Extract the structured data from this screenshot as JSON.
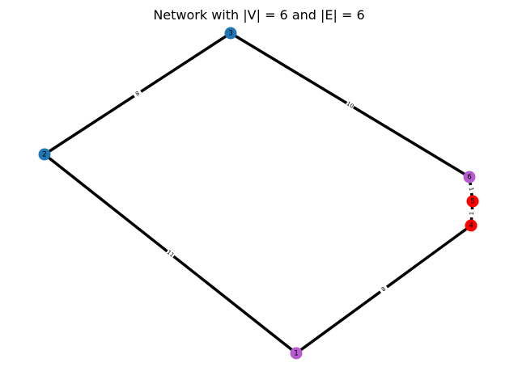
{
  "title": "Network with |V| = 6 and |E| = 6",
  "colors": {
    "background": "#ffffff",
    "edge": "#000000",
    "node_blue": "#1f77b4",
    "node_purple": "#b85bd2",
    "node_red": "#ff0000"
  },
  "nodes": [
    {
      "id": "1",
      "label": "1",
      "color": "#b85bd2"
    },
    {
      "id": "2",
      "label": "2",
      "color": "#1f77b4"
    },
    {
      "id": "3",
      "label": "3",
      "color": "#1f77b4"
    },
    {
      "id": "4",
      "label": "4",
      "color": "#ff0000"
    },
    {
      "id": "5",
      "label": "5",
      "color": "#ff0000"
    },
    {
      "id": "6",
      "label": "6",
      "color": "#b85bd2"
    }
  ],
  "edges": [
    {
      "source": "2",
      "target": "3",
      "weight": "8"
    },
    {
      "source": "3",
      "target": "6",
      "weight": "10"
    },
    {
      "source": "6",
      "target": "5",
      "weight": "1"
    },
    {
      "source": "5",
      "target": "4",
      "weight": "1"
    },
    {
      "source": "4",
      "target": "1",
      "weight": "8"
    },
    {
      "source": "1",
      "target": "2",
      "weight": "11"
    }
  ]
}
